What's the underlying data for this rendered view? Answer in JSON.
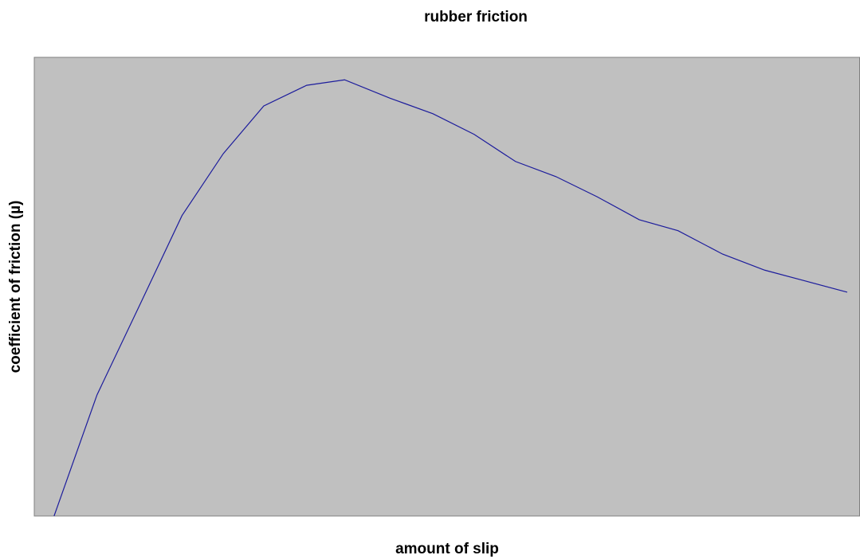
{
  "chart_data": {
    "type": "line",
    "title": "rubber friction",
    "x_label": "amount of slip",
    "y_label": "coefficient of friction (µ)",
    "x": [
      2.4,
      7.6,
      12.7,
      17.9,
      22.9,
      27.8,
      33.0,
      37.6,
      43.1,
      48.3,
      53.3,
      58.3,
      63.2,
      68.2,
      73.3,
      78.0,
      83.4,
      88.5,
      93.5,
      98.5
    ],
    "series": [
      {
        "color": "#1c1c9c",
        "values": [
          0,
          26.4,
          45.7,
          65.5,
          79.0,
          89.4,
          93.9,
          95.1,
          91.1,
          87.7,
          83.2,
          77.3,
          74.0,
          69.6,
          64.6,
          62.2,
          57.1,
          53.6,
          51.2,
          48.8
        ]
      }
    ],
    "xlim": [
      0,
      100
    ],
    "ylim": [
      0,
      100
    ],
    "background": "#c0c0c0"
  }
}
